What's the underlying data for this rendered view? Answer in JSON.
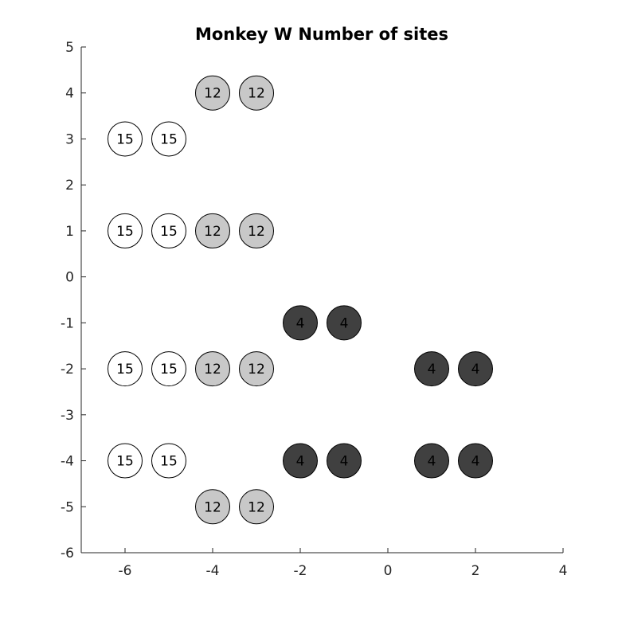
{
  "chart_data": {
    "type": "scatter",
    "title": "Monkey W Number of sites",
    "xlabel": "",
    "ylabel": "",
    "xlim": [
      -7,
      4
    ],
    "ylim": [
      -6,
      5
    ],
    "xticks": [
      -6,
      -4,
      -2,
      0,
      2,
      4
    ],
    "yticks": [
      -6,
      -5,
      -4,
      -3,
      -2,
      -1,
      0,
      1,
      2,
      3,
      4,
      5
    ],
    "grid": false,
    "legend": "none",
    "groups": [
      {
        "label": "15",
        "color": "#ffffff",
        "points": [
          [
            -6,
            3
          ],
          [
            -5,
            3
          ],
          [
            -6,
            1
          ],
          [
            -5,
            1
          ],
          [
            -6,
            -2
          ],
          [
            -5,
            -2
          ],
          [
            -6,
            -4
          ],
          [
            -5,
            -4
          ]
        ]
      },
      {
        "label": "12",
        "color": "#c8c8c8",
        "points": [
          [
            -4,
            4
          ],
          [
            -3,
            4
          ],
          [
            -4,
            1
          ],
          [
            -3,
            1
          ],
          [
            -4,
            -2
          ],
          [
            -3,
            -2
          ],
          [
            -4,
            -5
          ],
          [
            -3,
            -5
          ]
        ]
      },
      {
        "label": "4",
        "color": "#404040",
        "points": [
          [
            -2,
            -1
          ],
          [
            -1,
            -1
          ],
          [
            1,
            -2
          ],
          [
            2,
            -2
          ],
          [
            -2,
            -4
          ],
          [
            -1,
            -4
          ],
          [
            1,
            -4
          ],
          [
            2,
            -4
          ]
        ]
      }
    ]
  }
}
